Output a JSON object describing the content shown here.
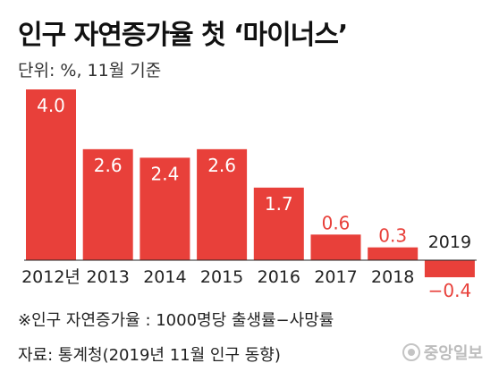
{
  "title": "인구 자연증가율 첫 ‘마이너스’",
  "unit_note": "단위: %, 11월 기준",
  "footnote": "※인구 자연증가율 : 1000명당 출생률−사망률",
  "source": "자료: 통계청(2019년 11월 인구 동향)",
  "logo_text": "중앙일보",
  "colors": {
    "bar": "#e8403a",
    "text_on_bar": "#ffffff",
    "axis": "#222222"
  },
  "chart_data": {
    "type": "bar",
    "title": "인구 자연증가율 첫 ‘마이너스’",
    "categories": [
      "2012년",
      "2013",
      "2014",
      "2015",
      "2016",
      "2017",
      "2018",
      "2019"
    ],
    "values": [
      4.0,
      2.6,
      2.4,
      2.6,
      1.7,
      0.6,
      0.3,
      -0.4
    ],
    "value_labels": [
      "4.0",
      "2.6",
      "2.4",
      "2.6",
      "1.7",
      "0.6",
      "0.3",
      "−0.4"
    ],
    "xlabel": "",
    "ylabel": "",
    "ylim": [
      -0.5,
      4.0
    ],
    "grid": false,
    "legend": "none"
  }
}
